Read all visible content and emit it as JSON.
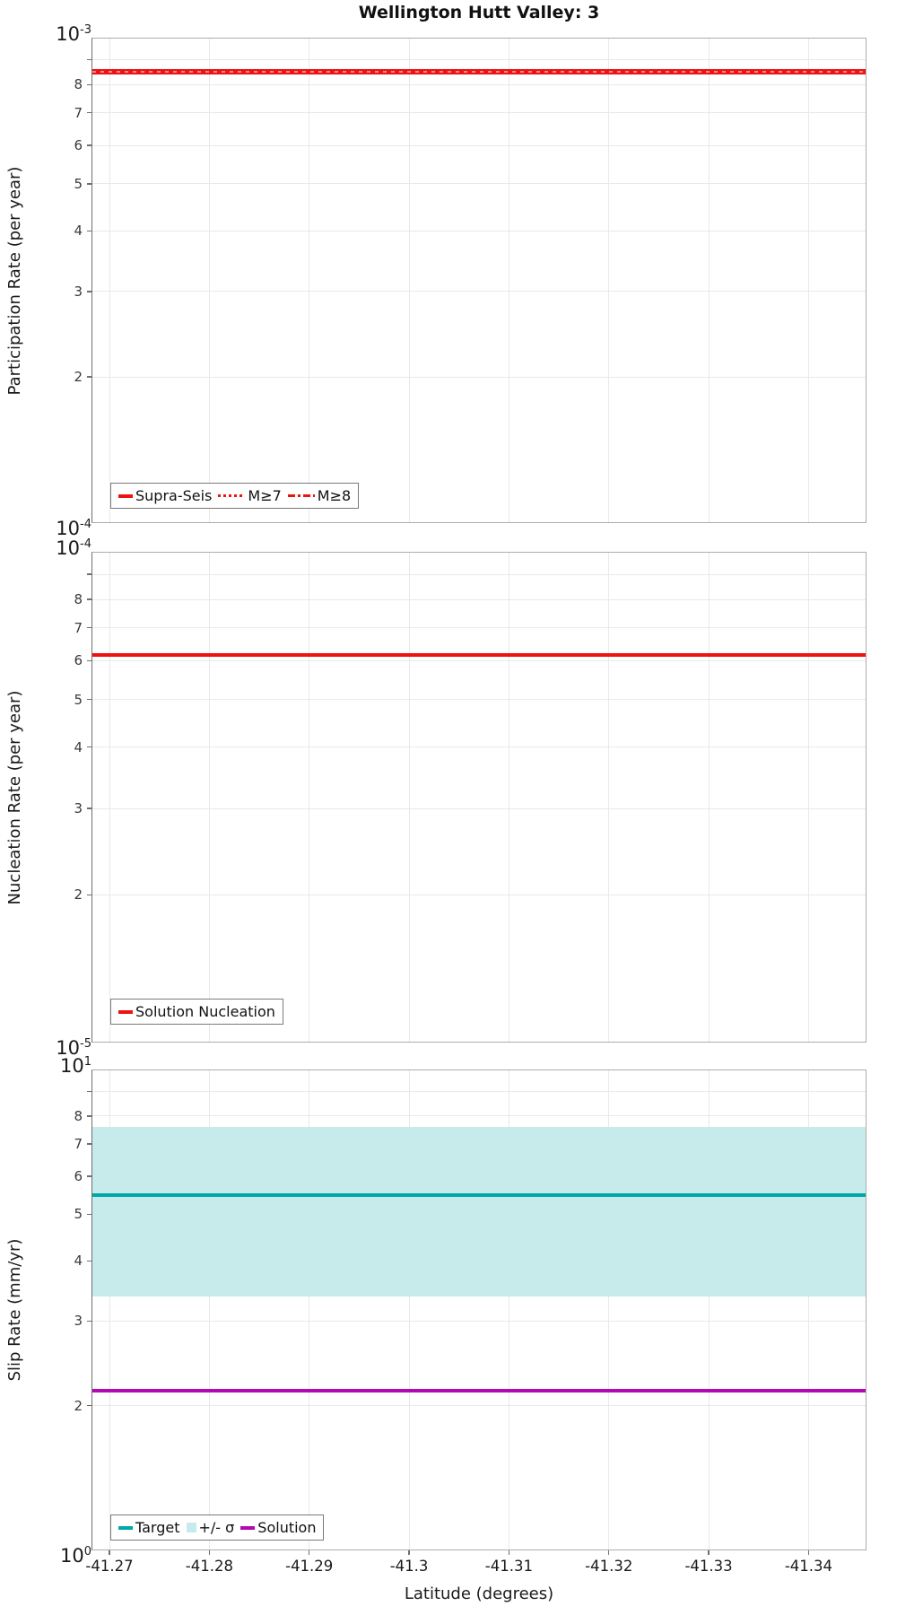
{
  "title": "Wellington Hutt Valley: 3",
  "xaxis": {
    "label": "Latitude (degrees)",
    "tick_labels": [
      "-41.27",
      "-41.28",
      "-41.29",
      "-41.3",
      "-41.31",
      "-41.32",
      "-41.33",
      "-41.34"
    ],
    "tick_values": [
      -41.27,
      -41.28,
      -41.29,
      -41.3,
      -41.31,
      -41.32,
      -41.33,
      -41.34
    ],
    "xlim": [
      -41.2682,
      -41.3458
    ]
  },
  "colors": {
    "red": "#ec1313",
    "teal": "#00a8a8",
    "band_cyan": "#c7ebeb",
    "purple": "#b20ab2",
    "grid": "#e9e9e9"
  },
  "chart_data": [
    {
      "type": "line",
      "panel": "participation",
      "ylabel": "Participation Rate (per year)",
      "yscale": "log",
      "ylim": [
        0.0001,
        0.001
      ],
      "exp_top": "-3",
      "exp_bottom": "-4",
      "ytick_labels": [
        "8",
        "7",
        "6",
        "5",
        "4",
        "3",
        "2"
      ],
      "series": [
        {
          "name": "Supra-Seis",
          "style": "solid",
          "color": "#ec1313",
          "value": 0.00085,
          "width": 6
        },
        {
          "name": "M≥7",
          "style": "dotted",
          "color": "#ec1313",
          "value": 0.00085,
          "width": 3,
          "overlay": true
        },
        {
          "name": "M≥8",
          "style": "dashdot",
          "color": "#ec1313",
          "value": 0.00085,
          "width": 3,
          "overlay": true
        }
      ],
      "legend": [
        {
          "label": "Supra-Seis",
          "swatch": "solid",
          "color": "#ec1313"
        },
        {
          "label": "M≥7",
          "swatch": "dotted",
          "color": "#ec1313"
        },
        {
          "label": "M≥8",
          "swatch": "dashdot",
          "color": "#ec1313"
        }
      ]
    },
    {
      "type": "line",
      "panel": "nucleation",
      "ylabel": "Nucleation Rate (per year)",
      "yscale": "log",
      "ylim": [
        1e-05,
        0.0001
      ],
      "exp_top": "-4",
      "exp_bottom": "-5",
      "ytick_labels": [
        "8",
        "7",
        "6",
        "5",
        "4",
        "3",
        "2"
      ],
      "series": [
        {
          "name": "Solution Nucleation",
          "style": "solid",
          "color": "#ec1313",
          "value": 6.15e-05,
          "width": 4
        }
      ],
      "legend": [
        {
          "label": "Solution Nucleation",
          "swatch": "solid",
          "color": "#ec1313"
        }
      ]
    },
    {
      "type": "line",
      "panel": "slip-rate",
      "ylabel": "Slip Rate (mm/yr)",
      "yscale": "log",
      "ylim": [
        1,
        10
      ],
      "exp_top": "1",
      "exp_bottom": "0",
      "ytick_labels": [
        "8",
        "7",
        "6",
        "5",
        "4",
        "3",
        "2"
      ],
      "band": {
        "name": "+/- σ",
        "lo": 3.37,
        "hi": 7.59,
        "color": "#c7ebeb"
      },
      "series": [
        {
          "name": "Target",
          "style": "solid",
          "color": "#00a8a8",
          "value": 5.48,
          "width": 4
        },
        {
          "name": "Solution",
          "style": "solid",
          "color": "#b20ab2",
          "value": 2.15,
          "width": 4
        }
      ],
      "legend": [
        {
          "label": "Target",
          "swatch": "solid",
          "color": "#00a8a8"
        },
        {
          "label": "+/- σ",
          "swatch": "patch",
          "color": "#c7ebeb"
        },
        {
          "label": "Solution",
          "swatch": "solid",
          "color": "#b20ab2"
        }
      ]
    }
  ]
}
